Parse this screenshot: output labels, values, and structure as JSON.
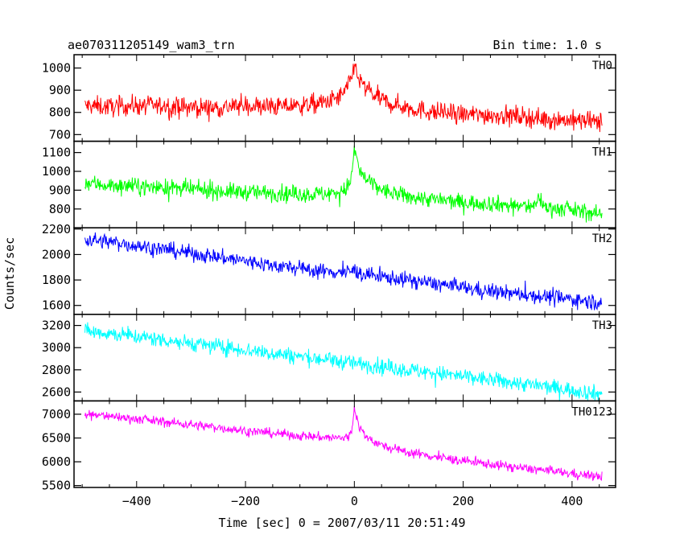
{
  "header": {
    "title": "ae070311205149_wam3_trn",
    "bin_time": "Bin time: 1.0 s"
  },
  "chart_data": {
    "type": "line",
    "title": "ae070311205149_wam3_trn",
    "xlabel": "Time [sec] 0 = 2007/03/11 20:51:49",
    "ylabel": "Counts/sec",
    "xlim": [
      -515,
      480
    ],
    "xticks": [
      -400,
      -200,
      0,
      200,
      400
    ],
    "grid": false,
    "legend": "none",
    "trigger_time_s": 0,
    "panels": [
      {
        "name": "TH0",
        "color": "#ff0000",
        "ylim": [
          670,
          1060
        ],
        "yticks": [
          700,
          800,
          900,
          1000
        ],
        "x": [
          -495,
          -450,
          -400,
          -350,
          -300,
          -250,
          -200,
          -150,
          -100,
          -50,
          -20,
          -10,
          -5,
          0,
          5,
          10,
          20,
          40,
          60,
          100,
          150,
          200,
          250,
          300,
          350,
          400,
          455
        ],
        "y": [
          830,
          825,
          832,
          828,
          822,
          822,
          830,
          825,
          830,
          845,
          880,
          930,
          950,
          1030,
          970,
          940,
          910,
          870,
          845,
          820,
          800,
          790,
          788,
          785,
          770,
          765,
          755
        ],
        "noise_amplitude": 40
      },
      {
        "name": "TH1",
        "color": "#00ff00",
        "ylim": [
          700,
          1160
        ],
        "yticks": [
          800,
          900,
          1000,
          1100
        ],
        "x": [
          -495,
          -450,
          -400,
          -350,
          -300,
          -250,
          -200,
          -150,
          -100,
          -50,
          -20,
          -10,
          -5,
          0,
          5,
          10,
          20,
          40,
          60,
          100,
          150,
          200,
          250,
          300,
          330,
          340,
          350,
          400,
          455
        ],
        "y": [
          940,
          925,
          920,
          915,
          905,
          895,
          890,
          885,
          880,
          880,
          895,
          930,
          970,
          1120,
          1060,
          1000,
          960,
          920,
          890,
          865,
          850,
          835,
          830,
          815,
          815,
          860,
          810,
          795,
          770
        ],
        "noise_amplitude": 40
      },
      {
        "name": "TH2",
        "color": "#0000ff",
        "ylim": [
          1530,
          2210
        ],
        "yticks": [
          1600,
          1800,
          2000,
          2200
        ],
        "x": [
          -495,
          -450,
          -400,
          -350,
          -300,
          -250,
          -200,
          -150,
          -100,
          -50,
          -10,
          0,
          10,
          50,
          100,
          150,
          200,
          250,
          300,
          350,
          400,
          455
        ],
        "y": [
          2120,
          2100,
          2070,
          2040,
          2010,
          1980,
          1950,
          1915,
          1890,
          1865,
          1860,
          1880,
          1850,
          1825,
          1800,
          1770,
          1740,
          1710,
          1690,
          1670,
          1650,
          1620
        ],
        "noise_amplitude": 55
      },
      {
        "name": "TH3",
        "color": "#00ffff",
        "ylim": [
          2520,
          3300
        ],
        "yticks": [
          2600,
          2800,
          3000,
          3200
        ],
        "x": [
          -495,
          -450,
          -400,
          -350,
          -300,
          -250,
          -200,
          -150,
          -100,
          -50,
          0,
          50,
          100,
          150,
          200,
          250,
          300,
          350,
          400,
          455
        ],
        "y": [
          3150,
          3130,
          3100,
          3070,
          3040,
          3010,
          2980,
          2950,
          2920,
          2890,
          2860,
          2830,
          2800,
          2770,
          2740,
          2710,
          2680,
          2650,
          2620,
          2580
        ],
        "noise_amplitude": 65
      },
      {
        "name": "TH0123",
        "color": "#ff00ff",
        "ylim": [
          5460,
          7280
        ],
        "yticks": [
          5500,
          6000,
          6500,
          7000
        ],
        "x": [
          -495,
          -450,
          -400,
          -350,
          -300,
          -250,
          -200,
          -150,
          -100,
          -50,
          -20,
          -10,
          -5,
          0,
          5,
          10,
          20,
          40,
          60,
          100,
          150,
          200,
          250,
          300,
          350,
          400,
          455
        ],
        "y": [
          7000,
          6960,
          6900,
          6840,
          6780,
          6720,
          6650,
          6600,
          6550,
          6510,
          6500,
          6540,
          6620,
          7150,
          6900,
          6720,
          6550,
          6400,
          6300,
          6200,
          6100,
          6020,
          5950,
          5880,
          5820,
          5750,
          5680
        ],
        "noise_amplitude": 90
      }
    ]
  }
}
